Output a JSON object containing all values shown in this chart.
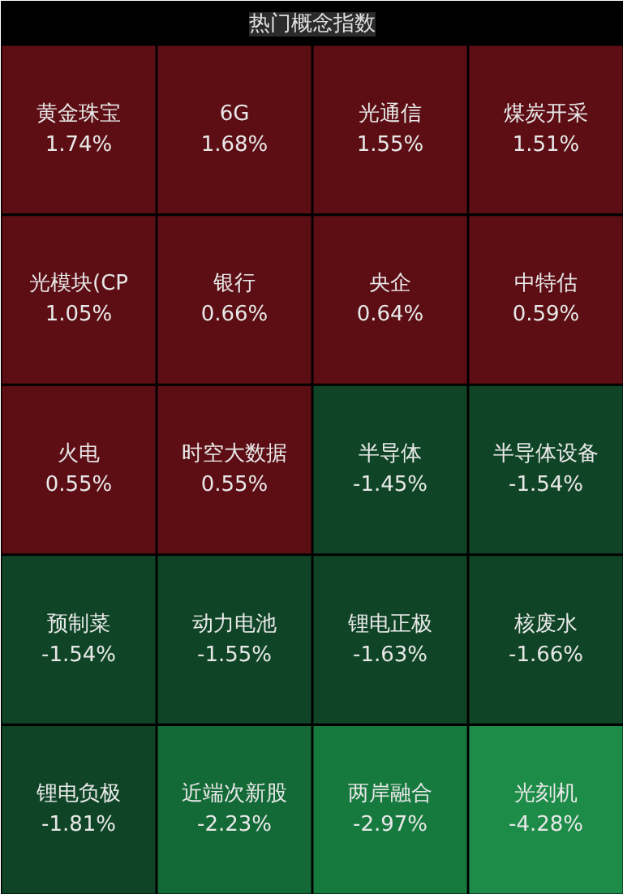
{
  "chart_data": {
    "type": "other",
    "title": "热门概念指数",
    "categories": [
      "黄金珠宝",
      "6G",
      "光通信",
      "煤炭开采",
      "光模块(CP",
      "银行",
      "央企",
      "中特估",
      "火电",
      "时空大数据",
      "半导体",
      "半导体设备",
      "预制菜",
      "动力电池",
      "锂电正极",
      "核废水",
      "锂电负极",
      "近端次新股",
      "两岸融合",
      "光刻机"
    ],
    "values": [
      1.74,
      1.68,
      1.55,
      1.51,
      1.05,
      0.66,
      0.64,
      0.59,
      0.55,
      0.55,
      -1.45,
      -1.54,
      -1.54,
      -1.55,
      -1.63,
      -1.66,
      -1.81,
      -2.23,
      -2.97,
      -4.28
    ],
    "value_labels": [
      "1.74%",
      "1.68%",
      "1.55%",
      "1.51%",
      "1.05%",
      "0.66%",
      "0.64%",
      "0.59%",
      "0.55%",
      "0.55%",
      "-1.45%",
      "-1.54%",
      "-1.54%",
      "-1.55%",
      "-1.63%",
      "-1.66%",
      "-1.81%",
      "-2.23%",
      "-2.97%",
      "-4.28%"
    ],
    "colors": [
      "#5c0e14",
      "#5c0e14",
      "#5c0e14",
      "#5c0e14",
      "#5c0e14",
      "#5c0e14",
      "#5c0e14",
      "#5c0e14",
      "#5c0e14",
      "#5c0e14",
      "#0f4526",
      "#0f4526",
      "#0f4526",
      "#0f4526",
      "#0f4526",
      "#0f4526",
      "#0f4526",
      "#136a37",
      "#167a3f",
      "#1d8c48"
    ]
  }
}
